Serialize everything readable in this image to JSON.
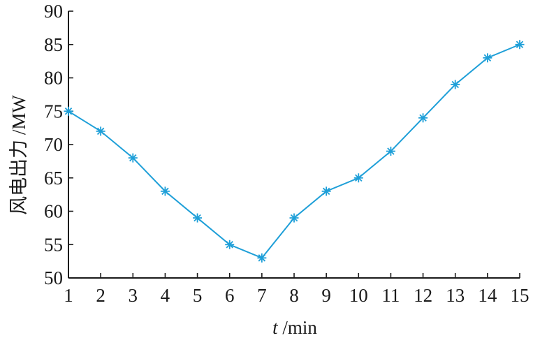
{
  "chart_data": {
    "type": "line",
    "title": "",
    "xlabel_var": "t",
    "xlabel_unit": " /min",
    "ylabel": "风电出力 /MW",
    "x": [
      1,
      2,
      3,
      4,
      5,
      6,
      7,
      8,
      9,
      10,
      11,
      12,
      13,
      14,
      15
    ],
    "series": [
      {
        "values": [
          75,
          72,
          68,
          63,
          59,
          55,
          53,
          59,
          63,
          65,
          69,
          74,
          79,
          83,
          85
        ]
      }
    ],
    "xlim": [
      1,
      15
    ],
    "ylim": [
      50,
      90
    ],
    "xticks": [
      1,
      2,
      3,
      4,
      5,
      6,
      7,
      8,
      9,
      10,
      11,
      12,
      13,
      14,
      15
    ],
    "yticks": [
      50,
      55,
      60,
      65,
      70,
      75,
      80,
      85,
      90
    ],
    "grid": false,
    "marker": "asterisk",
    "line_color": "#1e9fd8",
    "axis_color": "#1a1a1a"
  }
}
